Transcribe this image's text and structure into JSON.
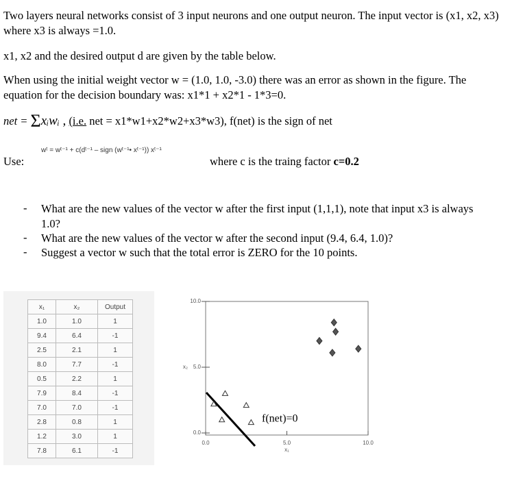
{
  "paragraphs": [
    "Two layers neural networks consist of 3 input neurons and one output neuron. The input vector is (x1, x2, x3) where x3 is always =1.0.",
    "x1, x2 and the desired output d are given by the table below.",
    "When using the initial weight vector w = (1.0, 1.0, -3.0) there was an error as shown in the figure. The equation for the decision boundary was: x1*1 + x2*1 - 1*3=0."
  ],
  "net_line": {
    "lhs": "net =",
    "sum": "Σ",
    "terms": "xᵢwᵢ ,",
    "ie": "(i.e.",
    "text": "net = x1*w1+x2*w2+x3*w3), f(net) is the sign of net"
  },
  "use_line": {
    "label": "Use:",
    "formula": "wᵗ = wᵗ⁻¹ + c(dᵗ⁻¹ – sign (wᵗ⁻¹• xᵗ⁻¹)) xᵗ⁻¹",
    "text": "where c is the traing factor",
    "bold": "c=0.2"
  },
  "bullets": [
    "What are the new values of the vector w after the first input (1,1,1), note that input x3 is always 1.0?",
    "What are the new values of the vector w after the second input (9.4, 6.4, 1.0)?",
    "Suggest a vector w such that the total error is ZERO for the 10 points."
  ],
  "table": {
    "header": [
      "x₁",
      "x₂",
      "Output"
    ],
    "rows": [
      [
        "1.0",
        "1.0",
        "1"
      ],
      [
        "9.4",
        "6.4",
        "-1"
      ],
      [
        "2.5",
        "2.1",
        "1"
      ],
      [
        "8.0",
        "7.7",
        "-1"
      ],
      [
        "0.5",
        "2.2",
        "1"
      ],
      [
        "7.9",
        "8.4",
        "-1"
      ],
      [
        "7.0",
        "7.0",
        "-1"
      ],
      [
        "2.8",
        "0.8",
        "1"
      ],
      [
        "1.2",
        "3.0",
        "1"
      ],
      [
        "7.8",
        "6.1",
        "-1"
      ]
    ]
  },
  "plot": {
    "xlim": [
      0,
      10
    ],
    "ylim": [
      0,
      10
    ],
    "xticks": [
      {
        "value": 0,
        "label": "0.0"
      },
      {
        "value": 5,
        "label": "5.0"
      },
      {
        "value": 10,
        "label": "10.0"
      }
    ],
    "yticks": [
      {
        "value": 0,
        "label": "0.0"
      },
      {
        "value": 5,
        "label": "5.0"
      },
      {
        "value": 10,
        "label": "10.0"
      }
    ],
    "xlabel": "x₁",
    "ylabel": "x₂",
    "annotation": "f(net)=0"
  }
}
